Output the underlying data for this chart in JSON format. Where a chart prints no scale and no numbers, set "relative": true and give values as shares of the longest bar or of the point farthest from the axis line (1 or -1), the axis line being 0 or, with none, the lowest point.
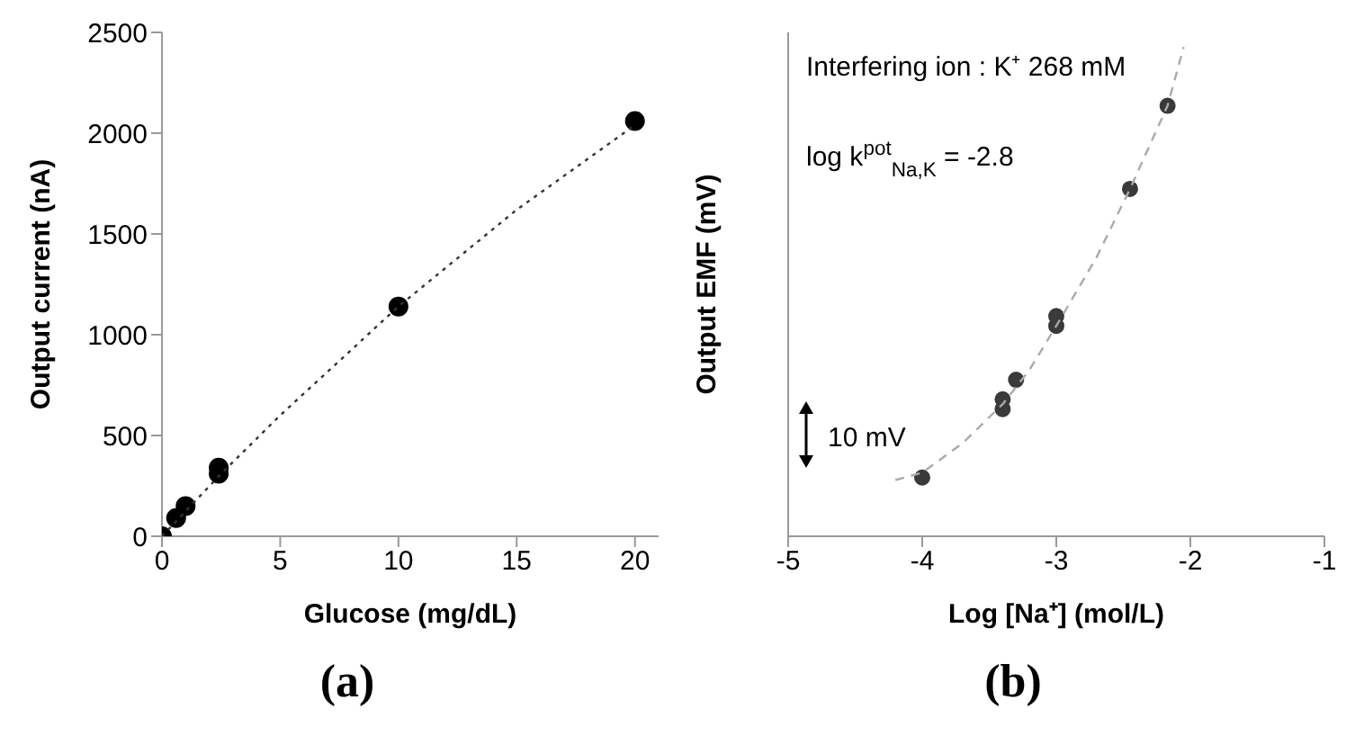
{
  "chart_data": [
    {
      "type": "scatter",
      "xlabel": "Glucose (mg/dL)",
      "ylabel": "Output current  (nA)",
      "xlim": [
        0,
        21
      ],
      "xticks": [
        0,
        5,
        10,
        15,
        20
      ],
      "ylim": [
        0,
        2500
      ],
      "yticks": [
        0,
        500,
        1000,
        1500,
        2000,
        2500
      ],
      "marker": "circle",
      "legend": false,
      "grid": false,
      "annotations": [
        "(a)"
      ],
      "series": [
        {
          "color": "#000000",
          "x": [
            0,
            0.6,
            1,
            2.4,
            2.4,
            10,
            20
          ],
          "values": [
            0,
            90,
            150,
            310,
            340,
            1140,
            2060
          ]
        },
        {
          "type": "line",
          "color": "#333333",
          "line_style": "dotted",
          "marker": "none",
          "x": [
            0,
            2.5,
            5,
            10,
            15,
            20
          ],
          "values": [
            0,
            310,
            600,
            1140,
            1620,
            2040
          ]
        }
      ]
    },
    {
      "type": "scatter",
      "relative": true,
      "xlabel": "Log [Na⁺] (mol/L)",
      "ylabel": "Output EMF (mV)",
      "xlim": [
        -5,
        -1
      ],
      "xticks": [
        -5,
        -4,
        -3,
        -2,
        -1
      ],
      "tick_labels": "x",
      "marker": "circle",
      "legend": false,
      "grid": false,
      "annotations": [
        "(b)",
        "Interfering ion : K⁺ 268 mM",
        "log k$^{pot}$$_{Na,K}$ = -2.8",
        "10 mV"
      ],
      "series": [
        {
          "color": "#3a3a3a",
          "x": [
            -4,
            -3.4,
            -3.4,
            -3.3,
            -3,
            -3,
            -2.45,
            -2.17
          ],
          "values": [
            0.12,
            0.26,
            0.28,
            0.32,
            0.45,
            0.43,
            0.71,
            0.88
          ]
        },
        {
          "type": "line",
          "color": "#aaaaaa",
          "line_style": "dashed",
          "marker": "none",
          "x": [
            -4.2,
            -4,
            -3.7,
            -3.4,
            -3.2,
            -3,
            -2.7,
            -2.45,
            -2.17,
            -2.05
          ],
          "values": [
            0.115,
            0.13,
            0.19,
            0.27,
            0.34,
            0.43,
            0.57,
            0.71,
            0.88,
            1
          ]
        }
      ]
    }
  ]
}
